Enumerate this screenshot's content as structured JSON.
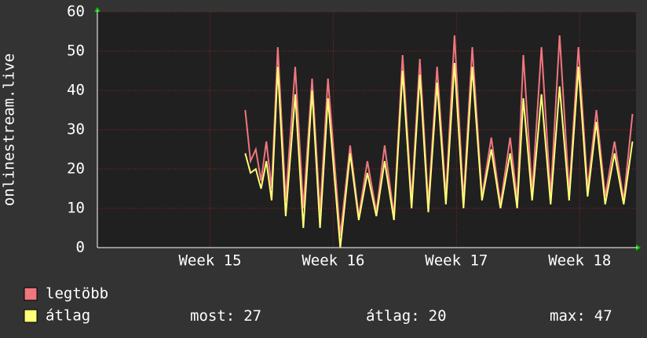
{
  "chart_data": {
    "type": "line",
    "y_label": "onlinestream.live",
    "x": [
      8.4,
      8.7,
      9.0,
      9.3,
      9.6,
      9.9,
      10.25,
      10.7,
      11.24,
      11.7,
      12.2,
      12.65,
      13.1,
      13.8,
      14.36,
      14.85,
      15.34,
      15.85,
      16.32,
      16.85,
      17.34,
      17.85,
      18.32,
      18.8,
      19.3,
      19.8,
      20.29,
      20.8,
      21.3,
      21.85,
      22.38,
      22.9,
      23.45,
      23.85,
      24.2,
      24.7,
      25.23,
      25.75,
      26.26,
      26.8,
      27.33,
      27.85,
      28.35,
      28.85,
      29.38,
      29.9,
      30.4
    ],
    "series": [
      {
        "name": "legtöbb",
        "color": "#f0767e",
        "values": [
          35,
          22,
          25,
          17,
          27,
          15,
          51,
          12,
          46,
          10,
          43,
          9,
          43,
          3,
          26,
          8,
          22,
          9,
          26,
          8,
          49,
          12,
          48,
          11,
          46,
          13,
          54,
          12,
          51,
          13,
          28,
          11,
          28,
          12,
          49,
          14,
          51,
          13,
          54,
          14,
          51,
          15,
          35,
          13,
          27,
          12,
          34
        ]
      },
      {
        "name": "átlag",
        "color": "#ffff78",
        "values": [
          24,
          19,
          20,
          15,
          22,
          12,
          46,
          8,
          39,
          5,
          40,
          5,
          38,
          0,
          24,
          7,
          19,
          8,
          22,
          7,
          45,
          10,
          44,
          9,
          42,
          11,
          47,
          10,
          46,
          12,
          25,
          10,
          24,
          10,
          38,
          12,
          39,
          11,
          41,
          12,
          46,
          13,
          32,
          11,
          24,
          11,
          27
        ]
      }
    ],
    "xlim": [
      0,
      30.6
    ],
    "xticks": [
      {
        "value": 6.4,
        "label": "Week 15"
      },
      {
        "value": 13.4,
        "label": "Week 16"
      },
      {
        "value": 20.4,
        "label": "Week 17"
      },
      {
        "value": 27.4,
        "label": "Week 18"
      }
    ],
    "ylim": [
      0,
      60
    ],
    "yticks": [
      0,
      10,
      20,
      30,
      40,
      50,
      60
    ],
    "grid": true,
    "stats": [
      {
        "label": "most:",
        "value": 27
      },
      {
        "label": "átlag:",
        "value": 20
      },
      {
        "label": "max:",
        "value": 47
      }
    ]
  }
}
